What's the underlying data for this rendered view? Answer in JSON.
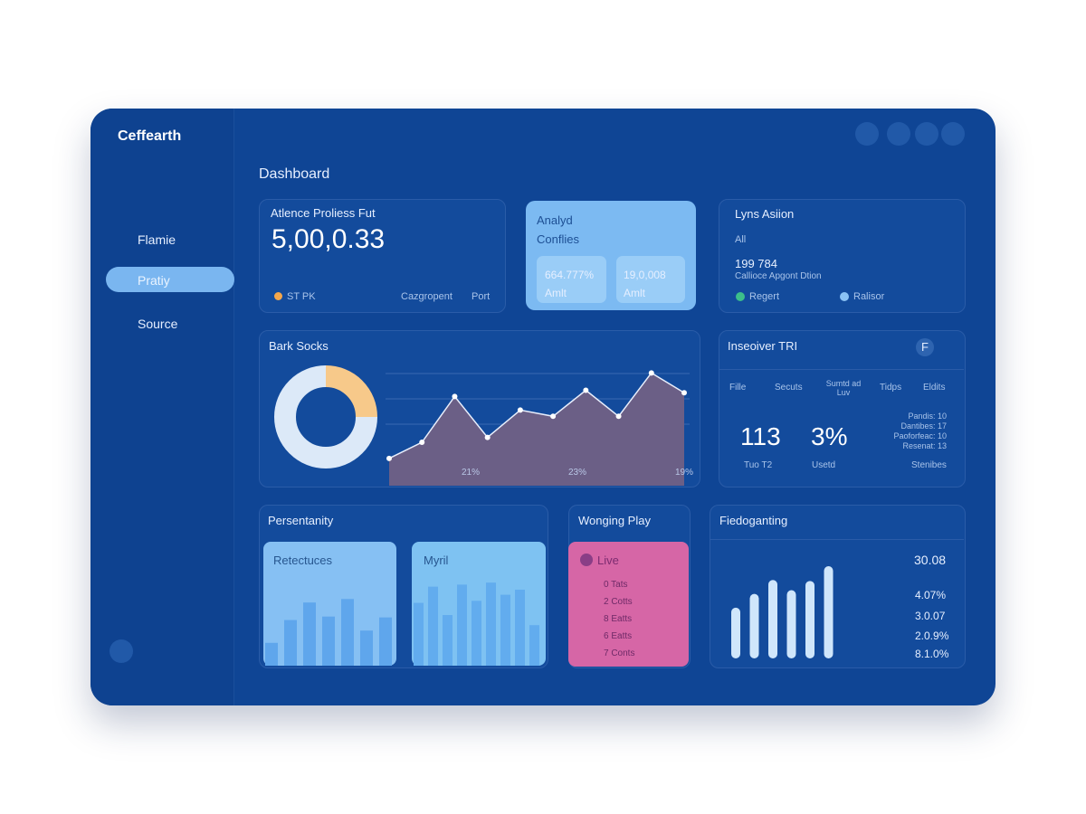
{
  "sidebar": {
    "brand": "Ceffearth",
    "nav": [
      "Flamie",
      "Pratiy",
      "Source"
    ]
  },
  "header": {
    "title": "Dashboard"
  },
  "card_progress": {
    "title": "Atlence Proliess Fut",
    "value": "5,00,0.33",
    "legend": "ST PK",
    "crumbs": [
      "Cazgropent",
      "Port"
    ]
  },
  "card_analyd": {
    "title": "Analyd",
    "subtitle": "Conflies",
    "tiles": [
      {
        "value": "664.777%",
        "label": "Amlt"
      },
      {
        "value": "19,0,008",
        "label": "Amlt"
      }
    ]
  },
  "card_lyns": {
    "title": "Lyns Asiion",
    "filter": "All",
    "value": "199 784",
    "caption": "Callioce Apgont Dtion",
    "legend": [
      "Regert",
      "Ralisor"
    ]
  },
  "card_sales": {
    "title": "Bark Socks",
    "donut": {
      "values": [
        25,
        75
      ],
      "colors": [
        "#f7c98a",
        "#dce9f8"
      ]
    },
    "chart_data": {
      "type": "area",
      "values": [
        22,
        35,
        72,
        39,
        61,
        56,
        77,
        56,
        91,
        75
      ],
      "ylim": [
        0,
        100
      ],
      "color": "#6b5f86",
      "x_labels": [
        "21%",
        "23%",
        "19%"
      ]
    }
  },
  "card_insights": {
    "title": "Inseoiver TRI",
    "button": "F",
    "columns": [
      "Fille",
      "Secuts",
      "Sumtd ad Luv",
      "Tidps",
      "Eldits"
    ],
    "stats": [
      {
        "value": "113",
        "label": "Tuo T2"
      },
      {
        "value": "3%",
        "label": "Usetd"
      }
    ],
    "list": [
      "Pandis: 10",
      "Dantibes: 17",
      "Paoforfeac: 10",
      "Resenat: 13"
    ],
    "footer": "Stenibes"
  },
  "card_personality": {
    "title": "Persentanity",
    "panels": [
      {
        "title": "Retectuces",
        "chart_data": {
          "type": "bar",
          "values": [
            26,
            52,
            72,
            56,
            76,
            40,
            55
          ],
          "ylim": [
            0,
            100
          ]
        }
      },
      {
        "title": "Myril",
        "chart_data": {
          "type": "bar",
          "values": [
            62,
            78,
            50,
            80,
            64,
            82,
            70,
            75,
            40
          ],
          "ylim": [
            0,
            100
          ]
        }
      }
    ]
  },
  "card_play": {
    "title": "Wonging Play",
    "live": "Live",
    "items": [
      "0 Tats",
      "2 Cotts",
      "8 Eatts",
      "6 Eatts",
      "7 Conts"
    ]
  },
  "card_fied": {
    "title": "Fiedoganting",
    "values": [
      "30.08",
      "4.07%",
      "3.0.07",
      "2.0.9%",
      "8.1.0%"
    ],
    "chart_data": {
      "type": "bar",
      "values": [
        55,
        70,
        85,
        74,
        84,
        100
      ],
      "ylim": [
        0,
        100
      ]
    }
  }
}
